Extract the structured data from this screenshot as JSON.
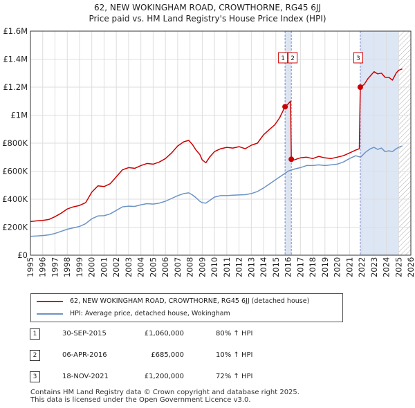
{
  "title": "62, NEW WOKINGHAM ROAD, CROWTHORNE, RG45 6JJ",
  "subtitle": "Price paid vs. HM Land Registry's House Price Index (HPI)",
  "colors": {
    "property": "#cc0000",
    "hpi": "#6b93c4",
    "shade": "#dde6f5",
    "grid": "#dddddd",
    "marker_line": "#7a86c4",
    "hatch": "#aaaaaa"
  },
  "chart_data": {
    "type": "line",
    "title": "Price paid vs. HM Land Registry's House Price Index (HPI)",
    "xlim": [
      1995,
      2026
    ],
    "ylim": [
      0,
      1600000
    ],
    "y_ticks": [
      {
        "value": 0,
        "label": "£0"
      },
      {
        "value": 200000,
        "label": "£200K"
      },
      {
        "value": 400000,
        "label": "£400K"
      },
      {
        "value": 600000,
        "label": "£600K"
      },
      {
        "value": 800000,
        "label": "£800K"
      },
      {
        "value": 1000000,
        "label": "£1M"
      },
      {
        "value": 1200000,
        "label": "£1.2M"
      },
      {
        "value": 1400000,
        "label": "£1.4M"
      },
      {
        "value": 1600000,
        "label": "£1.6M"
      }
    ],
    "x_ticks": [
      "1995",
      "1996",
      "1997",
      "1998",
      "1999",
      "2000",
      "2001",
      "2002",
      "2003",
      "2004",
      "2005",
      "2006",
      "2007",
      "2008",
      "2009",
      "2010",
      "2011",
      "2012",
      "2013",
      "2014",
      "2015",
      "2016",
      "2017",
      "2018",
      "2019",
      "2020",
      "2021",
      "2022",
      "2023",
      "2024",
      "2025",
      "2026"
    ],
    "grid": true,
    "hatch_from": 2025.0,
    "series": [
      {
        "name": "62, NEW WOKINGHAM ROAD, CROWTHORNE, RG45 6JJ (detached house)",
        "color": "#cc0000",
        "points": [
          [
            1995.0,
            240000
          ],
          [
            1995.5,
            245000
          ],
          [
            1996.0,
            248000
          ],
          [
            1996.5,
            255000
          ],
          [
            1997.0,
            275000
          ],
          [
            1997.5,
            300000
          ],
          [
            1998.0,
            330000
          ],
          [
            1998.5,
            345000
          ],
          [
            1999.0,
            355000
          ],
          [
            1999.5,
            375000
          ],
          [
            2000.0,
            450000
          ],
          [
            2000.5,
            495000
          ],
          [
            2001.0,
            490000
          ],
          [
            2001.5,
            510000
          ],
          [
            2002.0,
            560000
          ],
          [
            2002.5,
            610000
          ],
          [
            2003.0,
            625000
          ],
          [
            2003.5,
            620000
          ],
          [
            2004.0,
            640000
          ],
          [
            2004.5,
            655000
          ],
          [
            2005.0,
            650000
          ],
          [
            2005.5,
            665000
          ],
          [
            2006.0,
            690000
          ],
          [
            2006.5,
            730000
          ],
          [
            2007.0,
            780000
          ],
          [
            2007.5,
            810000
          ],
          [
            2007.9,
            820000
          ],
          [
            2008.2,
            790000
          ],
          [
            2008.5,
            750000
          ],
          [
            2008.8,
            720000
          ],
          [
            2009.0,
            680000
          ],
          [
            2009.3,
            660000
          ],
          [
            2009.6,
            700000
          ],
          [
            2010.0,
            740000
          ],
          [
            2010.5,
            760000
          ],
          [
            2011.0,
            770000
          ],
          [
            2011.5,
            765000
          ],
          [
            2012.0,
            775000
          ],
          [
            2012.5,
            760000
          ],
          [
            2013.0,
            785000
          ],
          [
            2013.5,
            800000
          ],
          [
            2014.0,
            860000
          ],
          [
            2014.5,
            900000
          ],
          [
            2014.9,
            930000
          ],
          [
            2015.3,
            980000
          ],
          [
            2015.75,
            1060000
          ],
          [
            2016.0,
            1080000
          ],
          [
            2016.2,
            1100000
          ],
          [
            2016.26,
            685000
          ],
          [
            2016.5,
            680000
          ],
          [
            2016.8,
            690000
          ],
          [
            2017.0,
            695000
          ],
          [
            2017.5,
            700000
          ],
          [
            2018.0,
            690000
          ],
          [
            2018.5,
            705000
          ],
          [
            2019.0,
            695000
          ],
          [
            2019.5,
            690000
          ],
          [
            2020.0,
            700000
          ],
          [
            2020.5,
            710000
          ],
          [
            2021.0,
            730000
          ],
          [
            2021.5,
            750000
          ],
          [
            2021.8,
            760000
          ],
          [
            2021.88,
            1200000
          ],
          [
            2022.2,
            1220000
          ],
          [
            2022.5,
            1260000
          ],
          [
            2022.8,
            1290000
          ],
          [
            2023.0,
            1310000
          ],
          [
            2023.3,
            1295000
          ],
          [
            2023.6,
            1300000
          ],
          [
            2023.9,
            1270000
          ],
          [
            2024.2,
            1270000
          ],
          [
            2024.5,
            1250000
          ],
          [
            2024.8,
            1300000
          ],
          [
            2025.0,
            1320000
          ],
          [
            2025.3,
            1330000
          ]
        ]
      },
      {
        "name": "HPI: Average price, detached house, Wokingham",
        "color": "#6b93c4",
        "points": [
          [
            1995.0,
            135000
          ],
          [
            1995.5,
            137000
          ],
          [
            1996.0,
            140000
          ],
          [
            1996.5,
            145000
          ],
          [
            1997.0,
            155000
          ],
          [
            1997.5,
            170000
          ],
          [
            1998.0,
            185000
          ],
          [
            1998.5,
            195000
          ],
          [
            1999.0,
            205000
          ],
          [
            1999.5,
            225000
          ],
          [
            2000.0,
            260000
          ],
          [
            2000.5,
            280000
          ],
          [
            2001.0,
            282000
          ],
          [
            2001.5,
            295000
          ],
          [
            2002.0,
            320000
          ],
          [
            2002.5,
            345000
          ],
          [
            2003.0,
            350000
          ],
          [
            2003.5,
            348000
          ],
          [
            2004.0,
            360000
          ],
          [
            2004.5,
            368000
          ],
          [
            2005.0,
            365000
          ],
          [
            2005.5,
            372000
          ],
          [
            2006.0,
            385000
          ],
          [
            2006.5,
            405000
          ],
          [
            2007.0,
            425000
          ],
          [
            2007.5,
            440000
          ],
          [
            2007.9,
            445000
          ],
          [
            2008.2,
            430000
          ],
          [
            2008.5,
            410000
          ],
          [
            2008.8,
            385000
          ],
          [
            2009.0,
            375000
          ],
          [
            2009.3,
            372000
          ],
          [
            2009.6,
            390000
          ],
          [
            2010.0,
            415000
          ],
          [
            2010.5,
            425000
          ],
          [
            2011.0,
            425000
          ],
          [
            2011.5,
            428000
          ],
          [
            2012.0,
            430000
          ],
          [
            2012.5,
            432000
          ],
          [
            2013.0,
            440000
          ],
          [
            2013.5,
            455000
          ],
          [
            2014.0,
            480000
          ],
          [
            2014.5,
            510000
          ],
          [
            2015.0,
            540000
          ],
          [
            2015.5,
            570000
          ],
          [
            2016.0,
            600000
          ],
          [
            2016.5,
            615000
          ],
          [
            2017.0,
            625000
          ],
          [
            2017.5,
            640000
          ],
          [
            2018.0,
            640000
          ],
          [
            2018.5,
            645000
          ],
          [
            2019.0,
            640000
          ],
          [
            2019.5,
            645000
          ],
          [
            2020.0,
            650000
          ],
          [
            2020.5,
            665000
          ],
          [
            2021.0,
            690000
          ],
          [
            2021.5,
            710000
          ],
          [
            2021.9,
            700000
          ],
          [
            2022.3,
            735000
          ],
          [
            2022.7,
            760000
          ],
          [
            2023.0,
            770000
          ],
          [
            2023.3,
            755000
          ],
          [
            2023.6,
            765000
          ],
          [
            2023.9,
            740000
          ],
          [
            2024.2,
            745000
          ],
          [
            2024.5,
            740000
          ],
          [
            2024.8,
            760000
          ],
          [
            2025.0,
            770000
          ],
          [
            2025.3,
            780000
          ]
        ]
      }
    ],
    "markers": [
      {
        "label": "1",
        "x": 2015.75,
        "y": 1060000
      },
      {
        "label": "2",
        "x": 2016.26,
        "y": 685000
      },
      {
        "label": "3",
        "x": 2021.88,
        "y": 1200000
      }
    ],
    "shaded_regions": [
      [
        2015.75,
        2016.26
      ],
      [
        2021.88,
        2025.0
      ]
    ]
  },
  "legend": [
    {
      "label": "62, NEW WOKINGHAM ROAD, CROWTHORNE, RG45 6JJ (detached house)",
      "color": "#cc0000"
    },
    {
      "label": "HPI: Average price, detached house, Wokingham",
      "color": "#6b93c4"
    }
  ],
  "sales": [
    {
      "num": "1",
      "date": "30-SEP-2015",
      "price": "£1,060,000",
      "hpi": "80% ↑ HPI"
    },
    {
      "num": "2",
      "date": "06-APR-2016",
      "price": "£685,000",
      "hpi": "10% ↑ HPI"
    },
    {
      "num": "3",
      "date": "18-NOV-2021",
      "price": "£1,200,000",
      "hpi": "72% ↑ HPI"
    }
  ],
  "footer": [
    "Contains HM Land Registry data © Crown copyright and database right 2025.",
    "This data is licensed under the Open Government Licence v3.0."
  ]
}
